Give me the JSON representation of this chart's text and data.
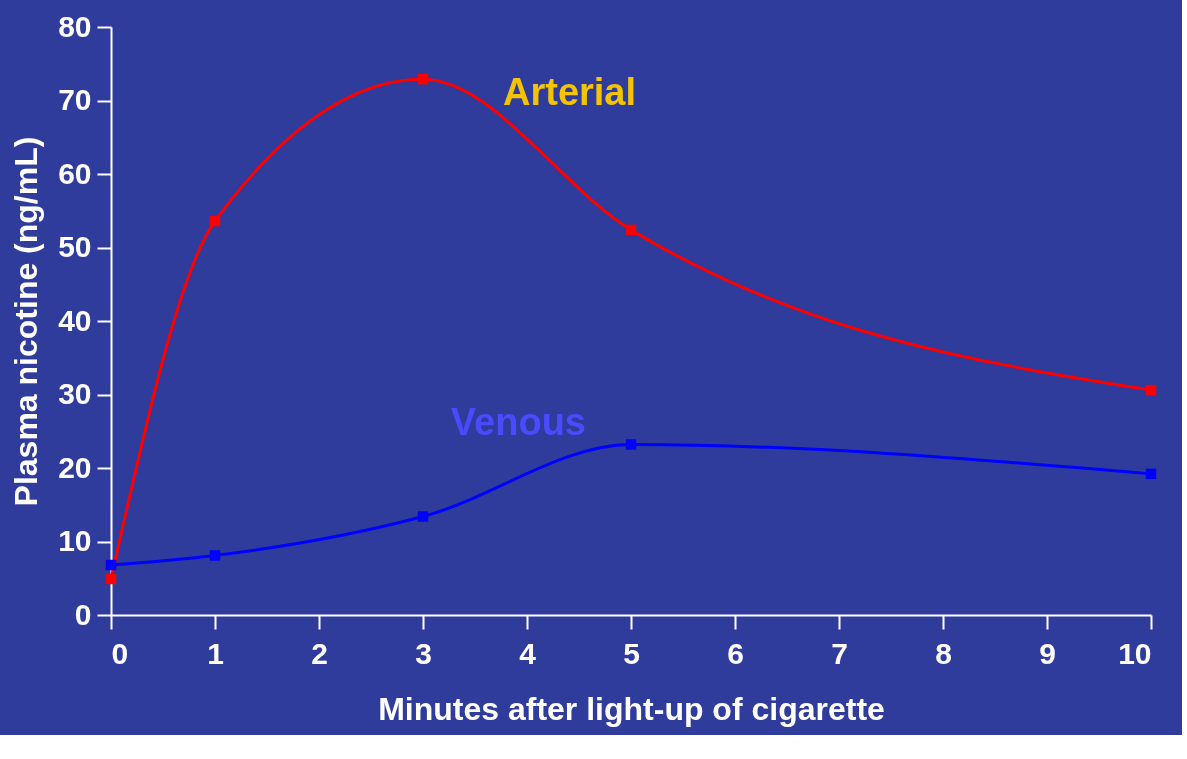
{
  "chart_data": {
    "type": "line",
    "xlabel": "Minutes after light-up of cigarette",
    "ylabel": "Plasma nicotine (ng/mL)",
    "xlim": [
      0,
      10
    ],
    "xticks": [
      0,
      1,
      2,
      3,
      4,
      5,
      6,
      7,
      8,
      9,
      10
    ],
    "ylim": [
      0,
      80
    ],
    "yticks": [
      0,
      10,
      20,
      30,
      40,
      50,
      60,
      70,
      80
    ],
    "grid": false,
    "marker": "square",
    "line_style": "solid",
    "series": [
      {
        "name": "Arterial",
        "color": "#ff0000",
        "x": [
          0,
          1,
          3,
          5,
          10
        ],
        "values": [
          4.9,
          53.6,
          72.9,
          52.4,
          30.6
        ]
      },
      {
        "name": "Venous",
        "color": "#0000ff",
        "x": [
          0,
          1,
          3,
          5,
          10
        ],
        "values": [
          6.8,
          8.1,
          13.4,
          23.2,
          19.2
        ]
      }
    ]
  }
}
